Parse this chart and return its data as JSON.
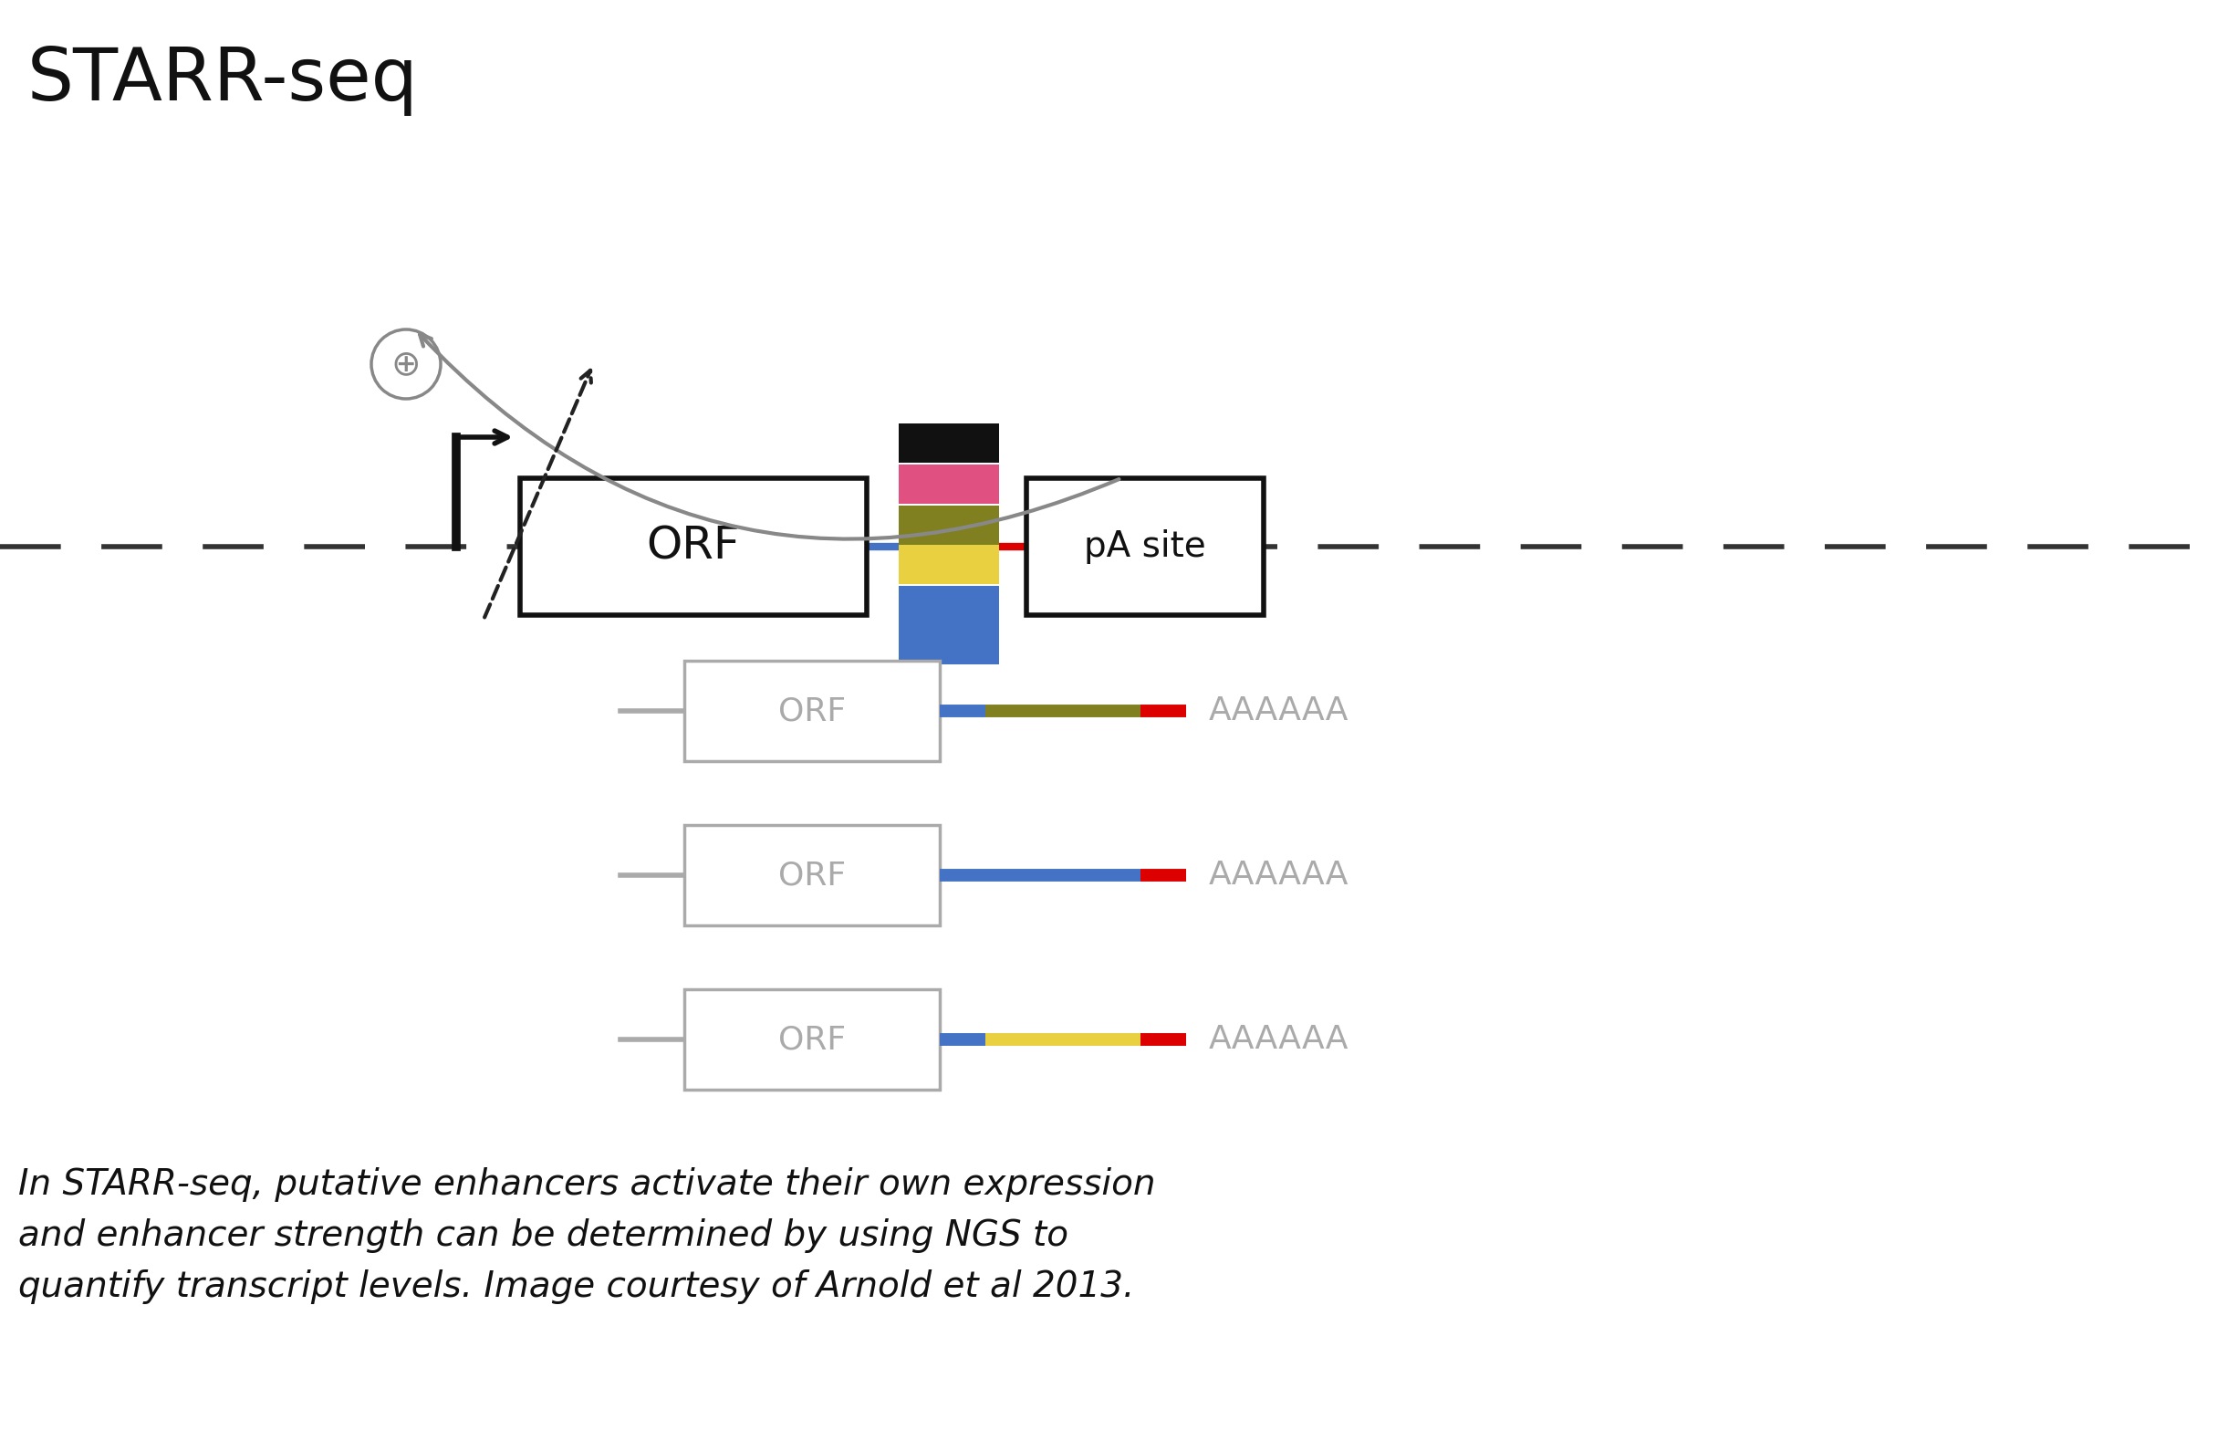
{
  "title": "STARR-seq",
  "title_fontsize": 58,
  "caption": "In STARR-seq, putative enhancers activate their own expression\nand enhancer strength can be determined by using NGS to\nquantify transcript levels. Image courtesy of Arnold et al 2013.",
  "caption_fontsize": 28,
  "bg_color": "#ffffff",
  "stripe_colors": [
    "#111111",
    "#e05080",
    "#808020",
    "#e8d040",
    "#4472c4",
    "#4472c4"
  ],
  "mrna_rows": [
    {
      "colors": [
        "#4472c4",
        "#808020",
        "#dd0000"
      ],
      "label": "AAAAAA"
    },
    {
      "colors": [
        "#4472c4",
        "#4472c4",
        "#dd0000"
      ],
      "label": "AAAAAA"
    },
    {
      "colors": [
        "#4472c4",
        "#e8d040",
        "#dd0000"
      ],
      "label": "AAAAAA"
    }
  ]
}
